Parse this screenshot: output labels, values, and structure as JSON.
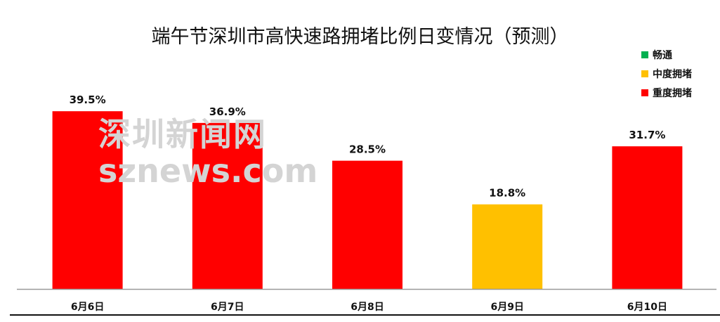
{
  "chart_data": {
    "type": "bar",
    "title": "端午节深圳市高快速路拥堵比例日变情况（预测）",
    "categories": [
      "6月6日",
      "6月7日",
      "6月8日",
      "6月9日",
      "6月10日"
    ],
    "values": [
      39.5,
      36.9,
      28.5,
      18.8,
      31.7
    ],
    "data_labels": [
      "39.5%",
      "36.9%",
      "28.5%",
      "18.8%",
      "31.7%"
    ],
    "bar_levels": [
      "重度拥堵",
      "重度拥堵",
      "重度拥堵",
      "中度拥堵",
      "重度拥堵"
    ],
    "ylim": [
      0,
      45
    ],
    "grid": false,
    "legend_position": "top-right",
    "legend": [
      {
        "name": "畅通",
        "color": "#00B050"
      },
      {
        "name": "中度拥堵",
        "color": "#FFC000"
      },
      {
        "name": "重度拥堵",
        "color": "#FF0000"
      }
    ]
  },
  "watermark": {
    "line1": "深圳新闻网",
    "line2": "sznews.com"
  }
}
